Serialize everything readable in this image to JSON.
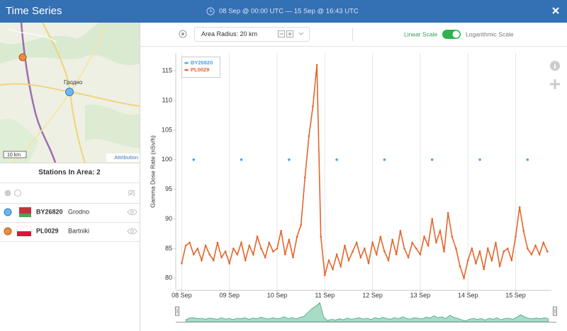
{
  "header": {
    "title": "Time Series",
    "date_range": "08 Sep @ 00:00 UTC  —  15 Sep @ 16:43 UTC"
  },
  "map": {
    "city": "Гродно",
    "scale": "10 km",
    "attribution": "Attribution"
  },
  "stations": {
    "title": "Stations In Area: 2",
    "count": "[2]",
    "rows": [
      {
        "code": "BY26820",
        "name": "Grodno"
      },
      {
        "code": "PL0029",
        "name": "Bartniki"
      }
    ]
  },
  "toolbar": {
    "area_radius": "Area Radius: 20 km",
    "linear": "Linear Scale",
    "log": "Logarithmic Scale"
  },
  "chart_data": {
    "type": "line",
    "y_label": "Gamma Dose Rate (nSv/h)",
    "log_scale": false,
    "grid": "x",
    "legend": "upper left",
    "xlim": [
      -3,
      186
    ],
    "xticks": [
      {
        "value": 0,
        "label": "08 Sep"
      },
      {
        "value": 24,
        "label": "09 Sep"
      },
      {
        "value": 48,
        "label": "10 Sep"
      },
      {
        "value": 72,
        "label": "11 Sep"
      },
      {
        "value": 96,
        "label": "12 Sep"
      },
      {
        "value": 120,
        "label": "13 Sep"
      },
      {
        "value": 144,
        "label": "14 Sep"
      },
      {
        "value": 168,
        "label": "15 Sep"
      }
    ],
    "ylim": [
      78,
      118
    ],
    "yticks": [
      80,
      85,
      90,
      95,
      100,
      105,
      110,
      115
    ],
    "series": [
      {
        "name": "BY26820",
        "color": "#4aa3e8",
        "line": false,
        "x": [
          6,
          30,
          54,
          78,
          102,
          126,
          150,
          174
        ],
        "values": [
          100,
          100,
          100,
          100,
          100,
          100,
          100,
          100
        ]
      },
      {
        "name": "PL0029",
        "color": "#e4652b",
        "line": true,
        "x": [
          0,
          2,
          4,
          6,
          8,
          10,
          12,
          14,
          16,
          18,
          20,
          22,
          24,
          26,
          28,
          30,
          32,
          34,
          36,
          38,
          40,
          42,
          44,
          46,
          48,
          50,
          52,
          54,
          56,
          58,
          60,
          62,
          64,
          66,
          68,
          70,
          72,
          74,
          76,
          78,
          80,
          82,
          84,
          86,
          88,
          90,
          92,
          94,
          96,
          98,
          100,
          102,
          104,
          106,
          108,
          110,
          112,
          114,
          116,
          118,
          120,
          122,
          124,
          126,
          128,
          130,
          132,
          134,
          136,
          138,
          140,
          142,
          144,
          146,
          148,
          150,
          152,
          154,
          156,
          158,
          160,
          162,
          164,
          166,
          168,
          170,
          172,
          174,
          176,
          178,
          180,
          182,
          184
        ],
        "values": [
          82.5,
          85.5,
          86,
          84,
          85,
          83,
          85.5,
          84,
          83,
          86,
          83.5,
          84.5,
          82.5,
          85,
          84,
          86,
          83,
          85.5,
          84,
          87,
          85,
          83.5,
          86,
          84.5,
          85,
          88,
          84,
          86.5,
          83.5,
          87,
          89,
          97,
          104,
          109,
          116,
          87,
          80.5,
          83,
          81.5,
          84,
          82,
          85.5,
          83,
          84.5,
          86,
          83.5,
          85,
          82.5,
          86,
          84,
          87,
          84.5,
          83,
          86.5,
          84,
          88,
          85,
          83.5,
          86,
          85,
          84,
          87,
          85.5,
          90,
          86,
          88,
          84.5,
          91,
          87,
          85,
          82,
          80,
          83,
          85,
          82.5,
          84.5,
          81.5,
          85,
          83,
          86,
          82,
          84.5,
          85,
          83,
          87,
          92,
          88,
          85,
          84,
          85.5,
          84,
          86,
          84.5
        ]
      }
    ]
  }
}
